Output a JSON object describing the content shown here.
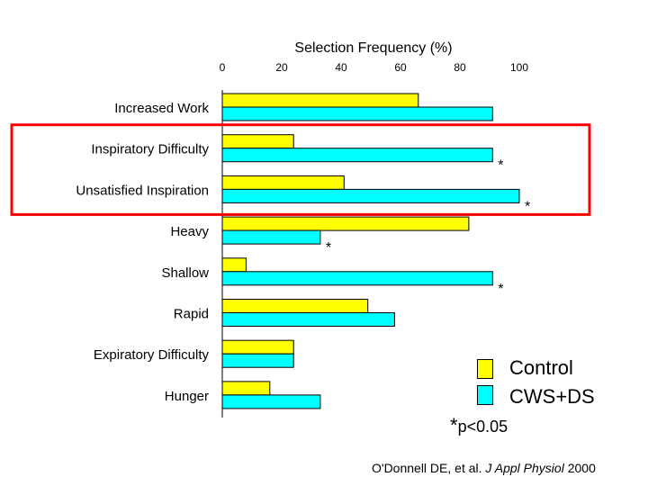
{
  "chart_data": {
    "type": "bar",
    "orientation": "horizontal",
    "title": "Selection Frequency (%)",
    "xlim": [
      0,
      100
    ],
    "ticks": [
      0,
      20,
      40,
      60,
      80,
      100
    ],
    "categories": [
      "Increased Work",
      "Inspiratory Difficulty",
      "Unsatisfied Inspiration",
      "Heavy",
      "Shallow",
      "Rapid",
      "Expiratory Difficulty",
      "Hunger"
    ],
    "series": [
      {
        "name": "Control",
        "color": "#ffff00",
        "values": [
          66,
          24,
          41,
          83,
          8,
          49,
          24,
          16
        ]
      },
      {
        "name": "CWS+DS",
        "color": "#00ffff",
        "values": [
          91,
          91,
          100,
          33,
          91,
          58,
          24,
          33
        ]
      }
    ],
    "significance": [
      false,
      true,
      true,
      true,
      true,
      false,
      false,
      false
    ],
    "significance_marker": "*",
    "highlight": {
      "categories": [
        "Inspiratory Difficulty",
        "Unsatisfied Inspiration"
      ],
      "color": "#ff0000"
    }
  },
  "legend": {
    "items": [
      {
        "label": "Control",
        "color": "#ffff00"
      },
      {
        "label": "CWS+DS",
        "color": "#00ffff"
      }
    ]
  },
  "note": {
    "star": "*",
    "text": "p<0.05"
  },
  "citation": {
    "authors": "O'Donnell DE, et al. ",
    "journal": "J Appl Physiol",
    "year": " 2000"
  }
}
